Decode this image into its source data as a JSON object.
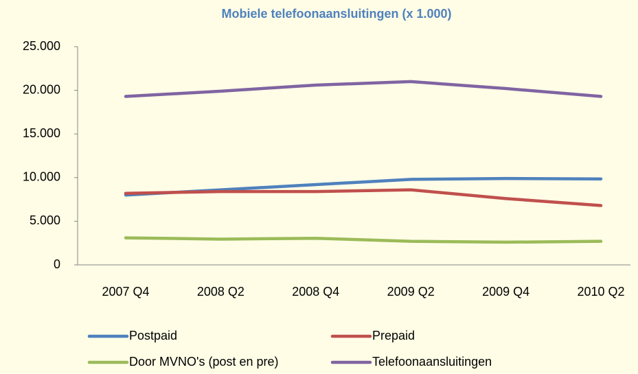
{
  "chart_data": {
    "type": "line",
    "title": "Mobiele telefoonaansluitingen (x 1.000)",
    "categories": [
      "2007 Q4",
      "2008 Q2",
      "2008 Q4",
      "2009 Q2",
      "2009 Q4",
      "2010 Q2"
    ],
    "series": [
      {
        "name": "Postpaid",
        "color": "#4f81bd",
        "values": [
          8000,
          8600,
          9200,
          9800,
          9900,
          9850
        ]
      },
      {
        "name": "Prepaid",
        "color": "#c0504d",
        "values": [
          8200,
          8400,
          8400,
          8600,
          7600,
          6800
        ]
      },
      {
        "name": "Door MVNO's (post en pre)",
        "color": "#9bbb59",
        "values": [
          3100,
          2950,
          3050,
          2700,
          2600,
          2700
        ]
      },
      {
        "name": "Telefoonaansluitingen",
        "color": "#8064a2",
        "values": [
          19300,
          19900,
          20600,
          21000,
          20200,
          19300
        ]
      }
    ],
    "ylim": [
      0,
      25000
    ],
    "yticks": [
      0,
      {
        "value": 5000,
        "label": "5.000"
      },
      {
        "value": 10000,
        "label": "10.000"
      },
      {
        "value": 15000,
        "label": "15.000"
      },
      {
        "value": 20000,
        "label": "20.000"
      },
      {
        "value": 25000,
        "label": "25.000"
      }
    ],
    "grid": false,
    "legend": "bottom"
  }
}
